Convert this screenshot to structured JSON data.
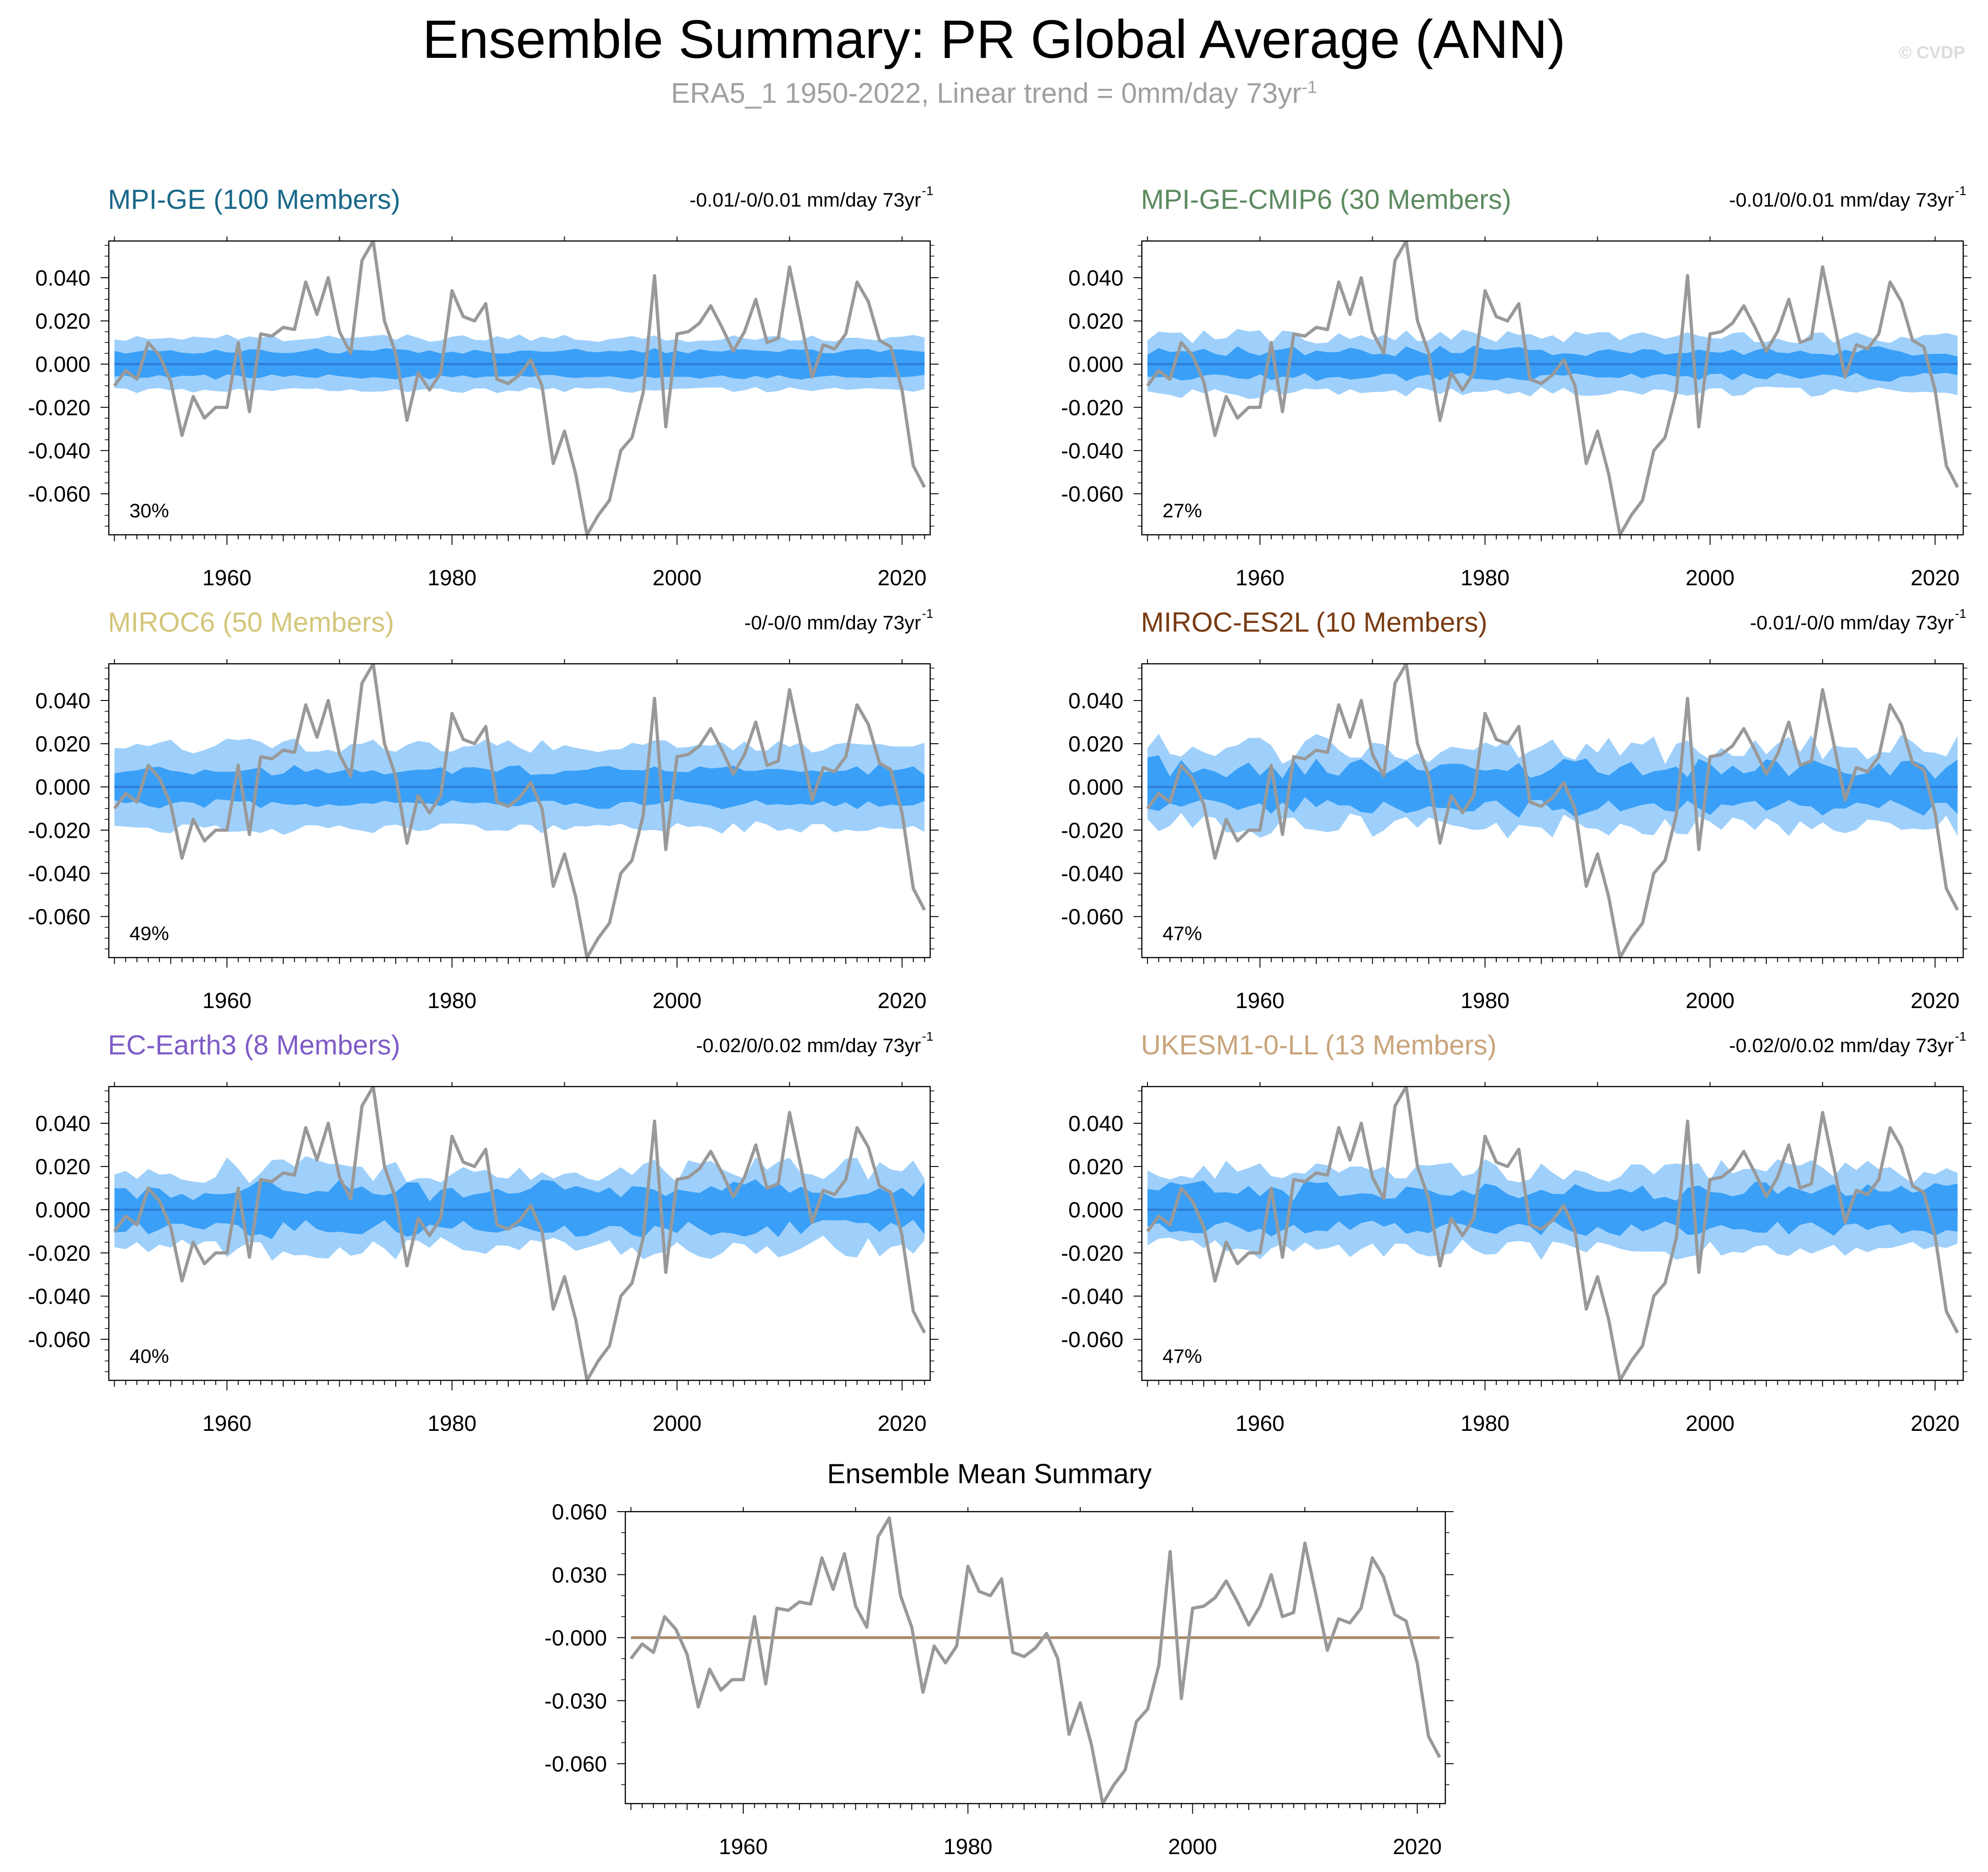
{
  "header": {
    "title": "Ensemble Summary: PR Global Average (ANN)",
    "subtitle": "ERA5_1 1950-2022, Linear trend = 0mm/day 73yr",
    "subtitle_sup": "-1",
    "watermark": "© CVDP"
  },
  "colors": {
    "observation_line": "#999999",
    "outer_band": "#9fd0fb",
    "inner_band": "#3aa0f7",
    "ensemble_mean": "#2f7fd6",
    "summary_mean": "#a88a68",
    "axis": "#000000"
  },
  "chart_data": [
    {
      "type": "line",
      "panel": "MPI-GE",
      "title": "MPI-GE (100 Members)",
      "title_color": "#1b6889",
      "trend_label": "-0.01/-0/0.01 mm/day 73yr",
      "trend_sup": "-1",
      "percent": "30%",
      "band_outer_halfwidth": 0.012,
      "band_inner_halfwidth": 0.006,
      "band_noise": 0.0015,
      "x_ticks": [
        1960,
        1980,
        2000,
        2020
      ],
      "y_ticks": [
        "0.040",
        "0.020",
        "0.000",
        "-0.020",
        "-0.040",
        "-0.060"
      ],
      "ylim": [
        -0.079,
        0.057
      ],
      "xlim": [
        1949.5,
        2022.5
      ]
    },
    {
      "type": "line",
      "panel": "MPI-GE-CMIP6",
      "title": "MPI-GE-CMIP6 (30 Members)",
      "title_color": "#5d8a60",
      "trend_label": "-0.01/0/0.01 mm/day 73yr",
      "trend_sup": "-1",
      "percent": "27%",
      "band_outer_halfwidth": 0.013,
      "band_inner_halfwidth": 0.006,
      "band_noise": 0.003,
      "x_ticks": [
        1960,
        1980,
        2000,
        2020
      ],
      "y_ticks": [
        "0.040",
        "0.020",
        "0.000",
        "-0.020",
        "-0.040",
        "-0.060"
      ],
      "ylim": [
        -0.079,
        0.057
      ],
      "xlim": [
        1949.5,
        2022.5
      ]
    },
    {
      "type": "line",
      "panel": "MIROC6",
      "title": "MIROC6 (50 Members)",
      "title_color": "#d4c67a",
      "trend_label": "-0/-0/0 mm/day 73yr",
      "trend_sup": "-1",
      "percent": "49%",
      "band_outer_halfwidth": 0.019,
      "band_inner_halfwidth": 0.008,
      "band_noise": 0.003,
      "x_ticks": [
        1960,
        1980,
        2000,
        2020
      ],
      "y_ticks": [
        "0.040",
        "0.020",
        "0.000",
        "-0.020",
        "-0.040",
        "-0.060"
      ],
      "ylim": [
        -0.079,
        0.057
      ],
      "xlim": [
        1949.5,
        2022.5
      ]
    },
    {
      "type": "line",
      "panel": "MIROC-ES2L",
      "title": "MIROC-ES2L (10 Members)",
      "title_color": "#7a3b12",
      "trend_label": "-0.01/-0/0 mm/day 73yr",
      "trend_sup": "-1",
      "percent": "47%",
      "band_outer_halfwidth": 0.018,
      "band_inner_halfwidth": 0.009,
      "band_noise": 0.006,
      "x_ticks": [
        1960,
        1980,
        2000,
        2020
      ],
      "y_ticks": [
        "0.040",
        "0.020",
        "0.000",
        "-0.020",
        "-0.040",
        "-0.060"
      ],
      "ylim": [
        -0.079,
        0.057
      ],
      "xlim": [
        1949.5,
        2022.5
      ]
    },
    {
      "type": "line",
      "panel": "EC-Earth3",
      "title": "EC-Earth3 (8 Members)",
      "title_color": "#7e5cc7",
      "trend_label": "-0.02/0/0.02 mm/day 73yr",
      "trend_sup": "-1",
      "percent": "40%",
      "band_outer_halfwidth": 0.018,
      "band_inner_halfwidth": 0.009,
      "band_noise": 0.006,
      "x_ticks": [
        1960,
        1980,
        2000,
        2020
      ],
      "y_ticks": [
        "0.040",
        "0.020",
        "0.000",
        "-0.020",
        "-0.040",
        "-0.060"
      ],
      "ylim": [
        -0.079,
        0.057
      ],
      "xlim": [
        1949.5,
        2022.5
      ]
    },
    {
      "type": "line",
      "panel": "UKESM1-0-LL",
      "title": "UKESM1-0-LL (13 Members)",
      "title_color": "#c9a47c",
      "trend_label": "-0.02/0/0.02 mm/day 73yr",
      "trend_sup": "-1",
      "percent": "47%",
      "band_outer_halfwidth": 0.018,
      "band_inner_halfwidth": 0.009,
      "band_noise": 0.005,
      "x_ticks": [
        1960,
        1980,
        2000,
        2020
      ],
      "y_ticks": [
        "0.040",
        "0.020",
        "0.000",
        "-0.020",
        "-0.040",
        "-0.060"
      ],
      "ylim": [
        -0.079,
        0.057
      ],
      "xlim": [
        1949.5,
        2022.5
      ]
    },
    {
      "type": "line",
      "panel": "Ensemble Mean Summary",
      "title": "Ensemble Mean Summary",
      "title_color": "#000000",
      "x_ticks": [
        1960,
        1980,
        2000,
        2020
      ],
      "y_ticks": [
        "0.060",
        "0.030",
        "-0.000",
        "-0.030",
        "-0.060"
      ],
      "ylim": [
        -0.079,
        0.06
      ],
      "xlim": [
        1949.5,
        2022.5
      ],
      "ensemble_mean_value": 0.0
    }
  ],
  "observations": {
    "name": "ERA5_1",
    "years_start": 1950,
    "years_end": 2022,
    "values": [
      -0.01,
      -0.003,
      -0.007,
      0.01,
      0.004,
      -0.008,
      -0.033,
      -0.015,
      -0.025,
      -0.02,
      -0.02,
      0.01,
      -0.022,
      0.014,
      0.013,
      0.017,
      0.016,
      0.038,
      0.023,
      0.04,
      0.015,
      0.005,
      0.048,
      0.057,
      0.02,
      0.005,
      -0.026,
      -0.004,
      -0.012,
      -0.004,
      0.034,
      0.022,
      0.02,
      0.028,
      -0.007,
      -0.009,
      -0.005,
      0.002,
      -0.01,
      -0.046,
      -0.031,
      -0.051,
      -0.079,
      -0.07,
      -0.063,
      -0.04,
      -0.034,
      -0.013,
      0.041,
      -0.029,
      0.014,
      0.015,
      0.019,
      0.027,
      0.017,
      0.006,
      0.015,
      0.03,
      0.01,
      0.012,
      0.045,
      0.02,
      -0.006,
      0.009,
      0.007,
      0.014,
      0.038,
      0.029,
      0.011,
      0.008,
      -0.012,
      -0.047,
      -0.057
    ]
  }
}
